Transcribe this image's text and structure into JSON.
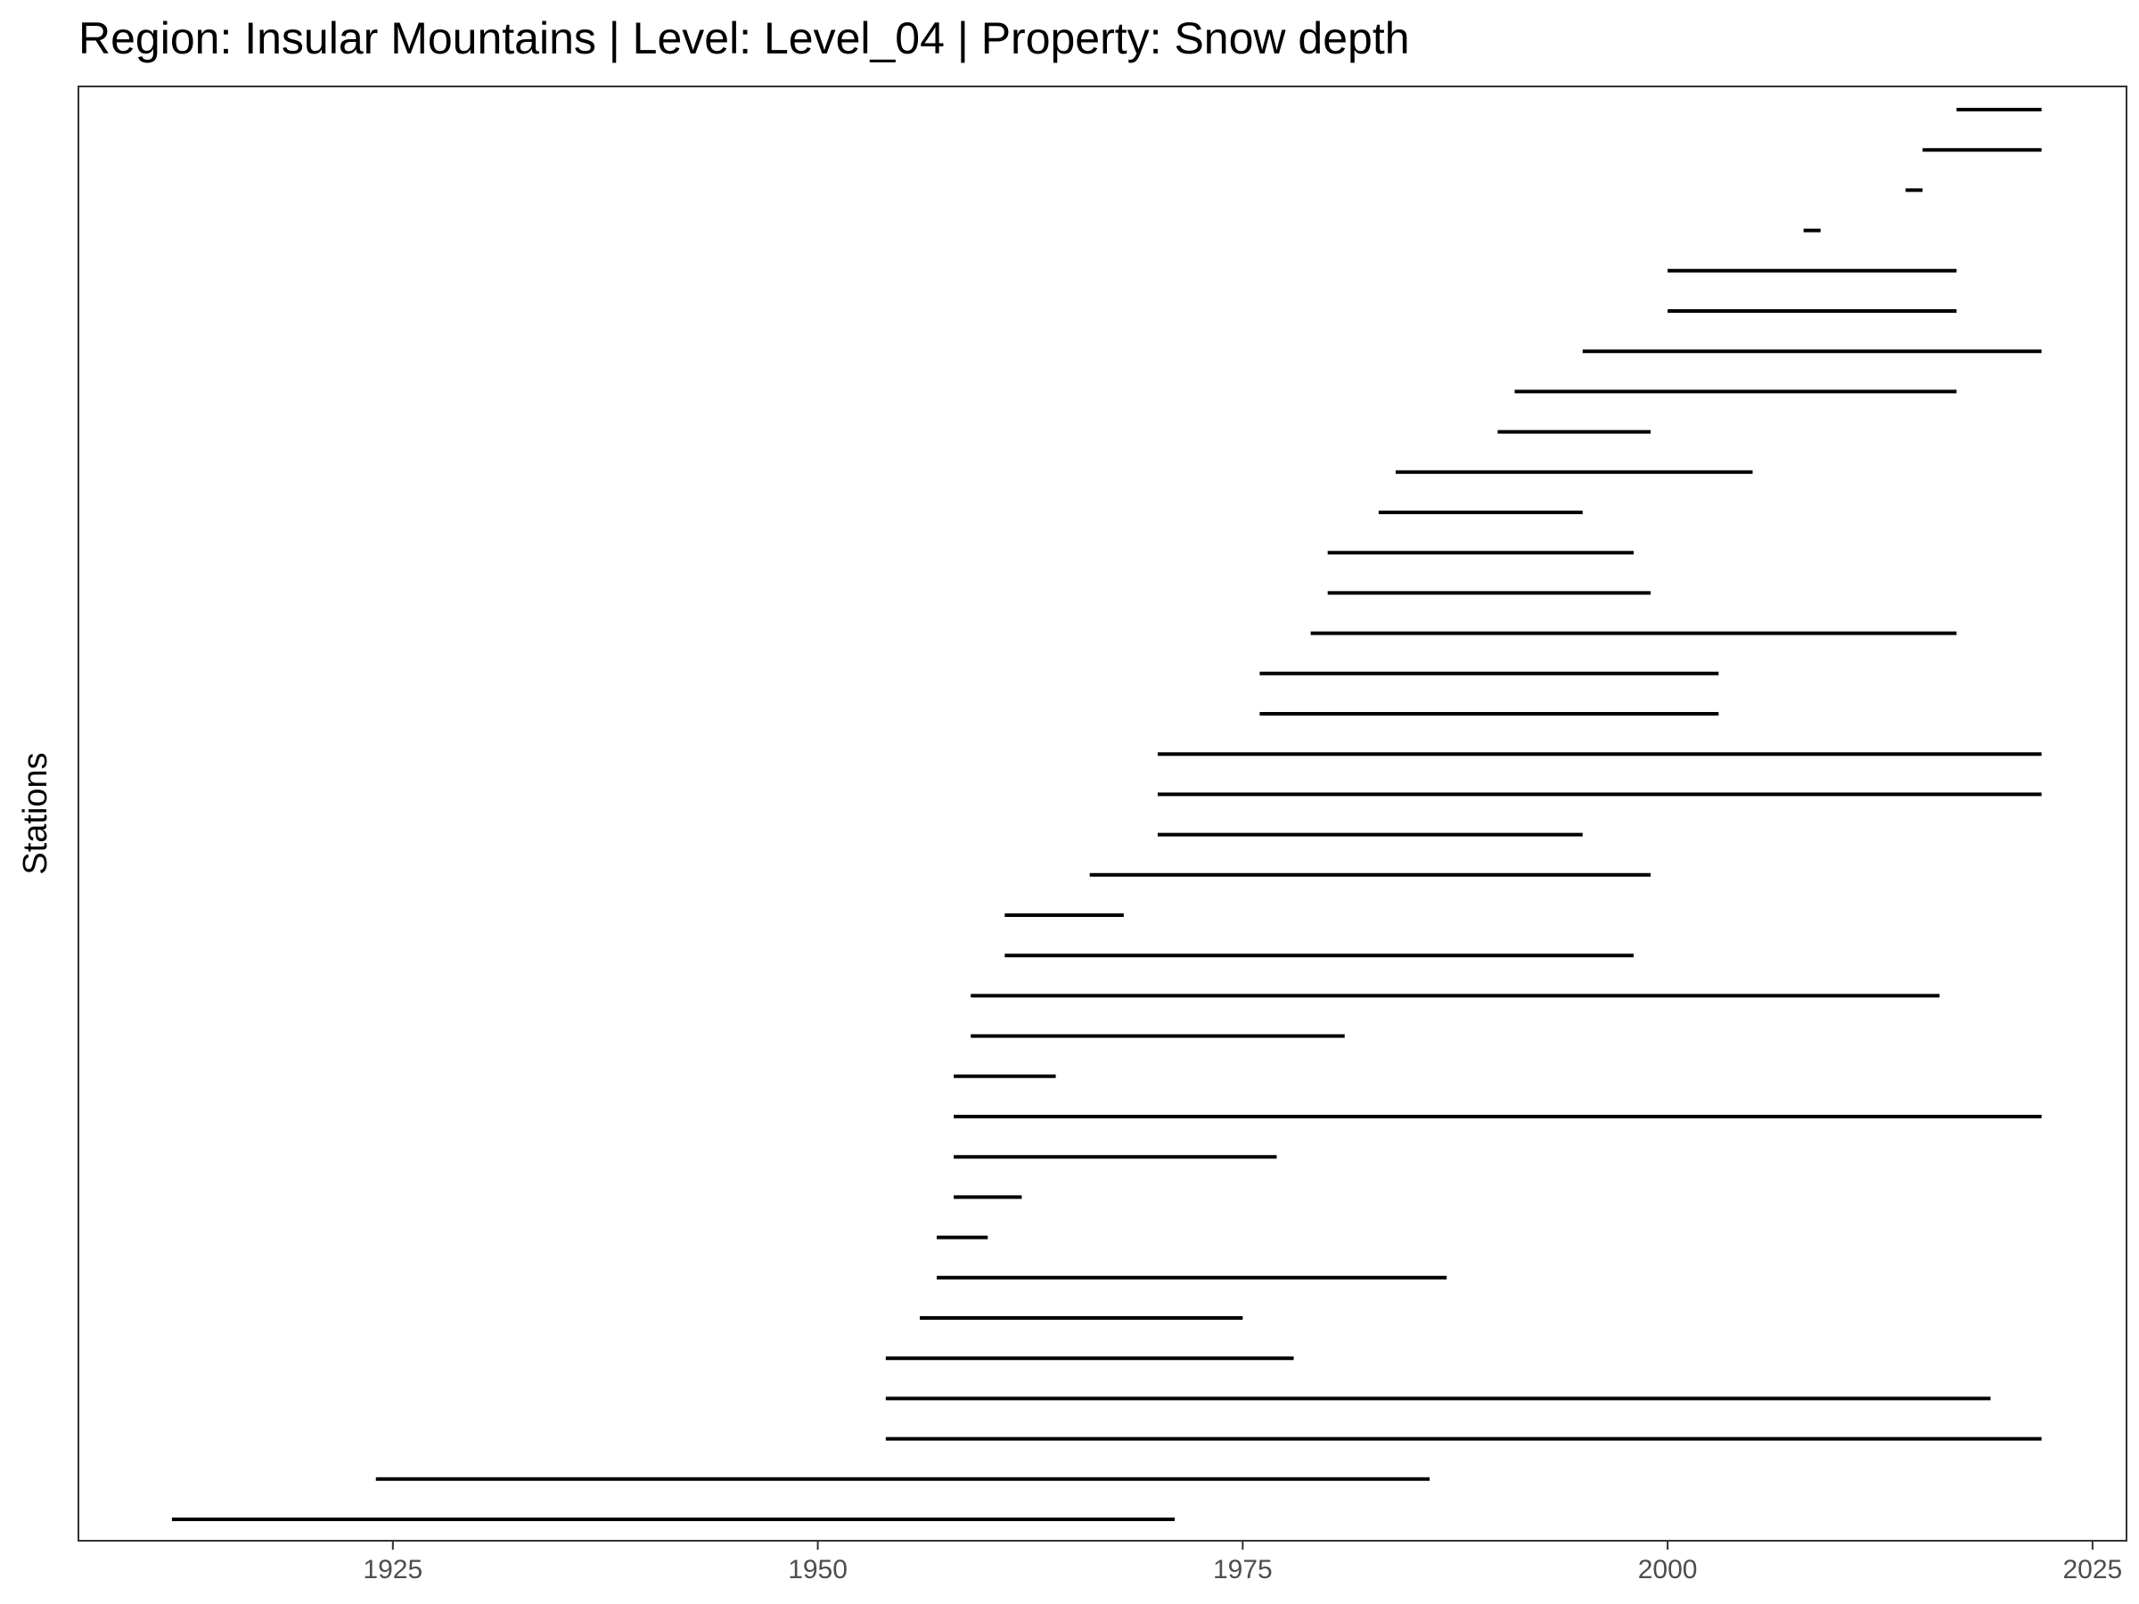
{
  "chart_data": {
    "type": "timeline",
    "title": "Region: Insular Mountains | Level: Level_04 | Property: Snow depth",
    "xlabel": "",
    "ylabel": "Stations",
    "xlim": [
      1906.5,
      2027
    ],
    "xticks": [
      1925,
      1950,
      1975,
      2000,
      2025
    ],
    "grid": false,
    "legend": "none",
    "colors": {
      "segment": "#000000",
      "frame": "#333333",
      "tick_label": "#4d4d4d"
    },
    "segments": [
      {
        "start": 1912,
        "end": 1971
      },
      {
        "start": 1924,
        "end": 1986
      },
      {
        "start": 1954,
        "end": 2022
      },
      {
        "start": 1954,
        "end": 2019
      },
      {
        "start": 1954,
        "end": 1978
      },
      {
        "start": 1956,
        "end": 1975
      },
      {
        "start": 1957,
        "end": 1987
      },
      {
        "start": 1957,
        "end": 1960
      },
      {
        "start": 1958,
        "end": 1962
      },
      {
        "start": 1958,
        "end": 1977
      },
      {
        "start": 1958,
        "end": 2022
      },
      {
        "start": 1958,
        "end": 1964
      },
      {
        "start": 1959,
        "end": 1981
      },
      {
        "start": 1959,
        "end": 2016
      },
      {
        "start": 1961,
        "end": 1998
      },
      {
        "start": 1961,
        "end": 1968
      },
      {
        "start": 1966,
        "end": 1999
      },
      {
        "start": 1970,
        "end": 1995
      },
      {
        "start": 1970,
        "end": 2022
      },
      {
        "start": 1970,
        "end": 2022
      },
      {
        "start": 1976,
        "end": 2003
      },
      {
        "start": 1976,
        "end": 2003
      },
      {
        "start": 1979,
        "end": 2017
      },
      {
        "start": 1980,
        "end": 1999
      },
      {
        "start": 1980,
        "end": 1998
      },
      {
        "start": 1983,
        "end": 1995
      },
      {
        "start": 1984,
        "end": 2005
      },
      {
        "start": 1990,
        "end": 1999
      },
      {
        "start": 1991,
        "end": 2017
      },
      {
        "start": 1995,
        "end": 2022
      },
      {
        "start": 2000,
        "end": 2017
      },
      {
        "start": 2000,
        "end": 2017
      },
      {
        "start": 2008,
        "end": 2009
      },
      {
        "start": 2014,
        "end": 2015
      },
      {
        "start": 2015,
        "end": 2022
      },
      {
        "start": 2017,
        "end": 2022
      }
    ]
  }
}
